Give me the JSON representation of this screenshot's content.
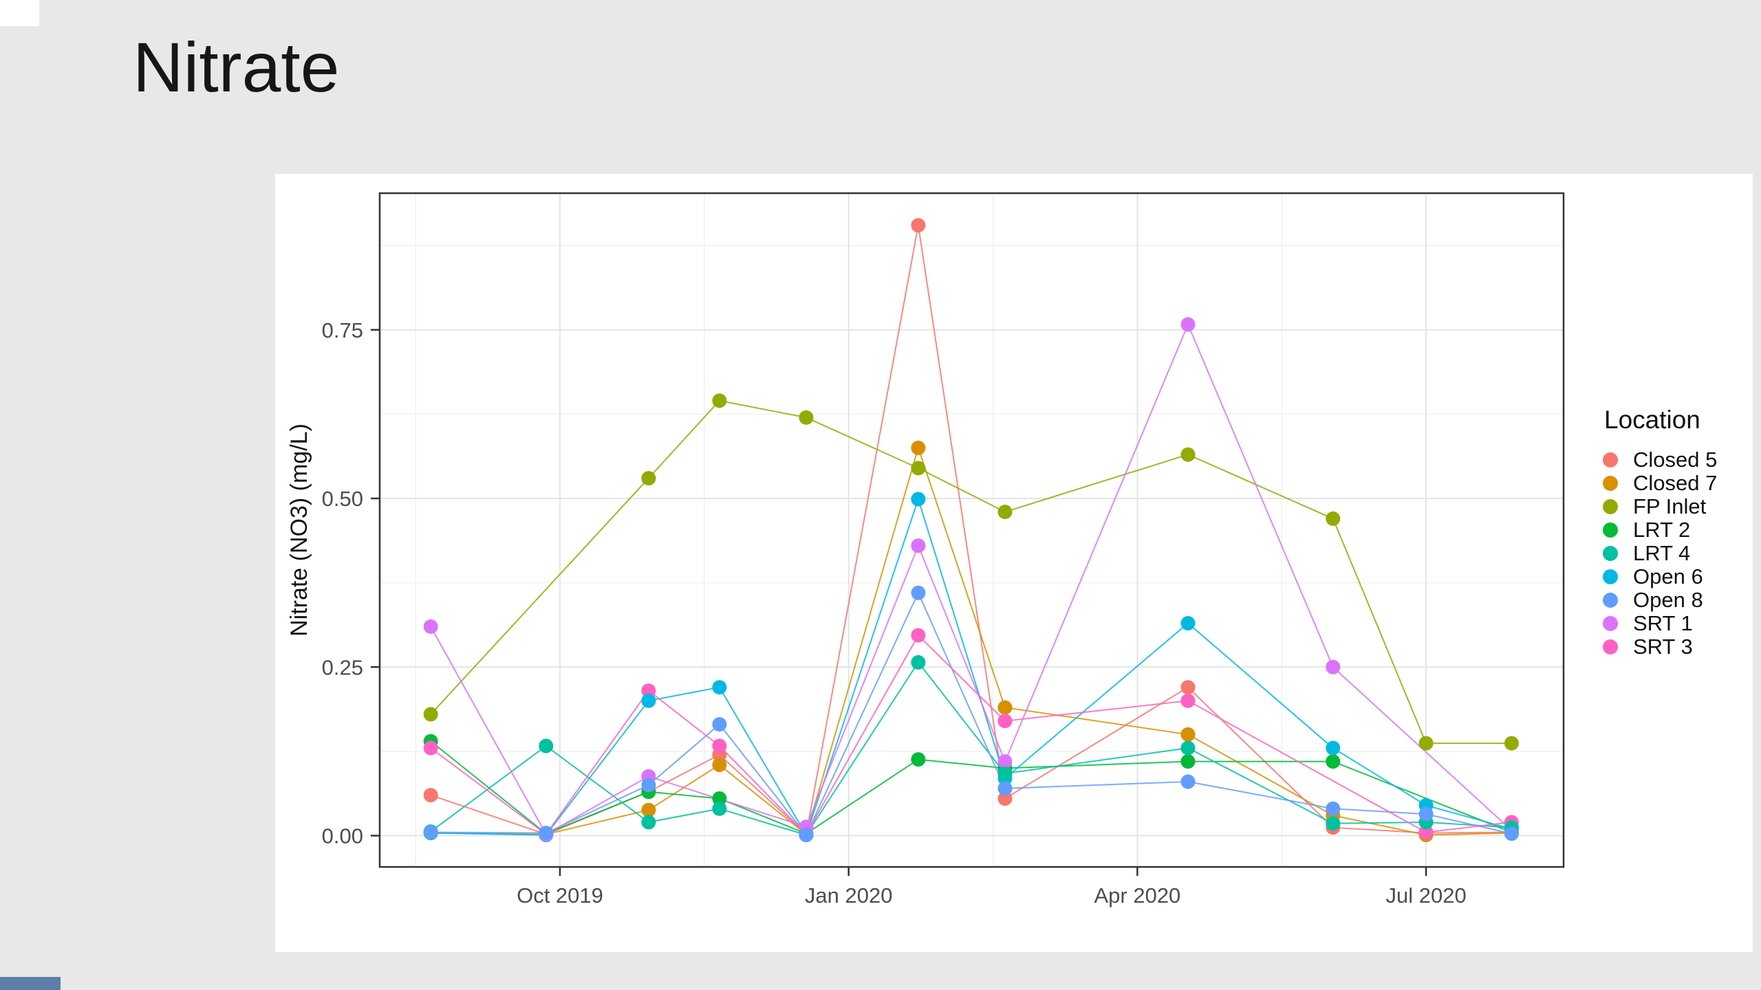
{
  "slide": {
    "title": "Nitrate",
    "background_color": "#E8E8E8",
    "card_color": "#FFFFFF",
    "top_left_box_color": "#FFFFFF",
    "bottom_left_bar_color": "#5B7FA6"
  },
  "chart_data": {
    "type": "line",
    "title": "Nitrate",
    "xlabel": "",
    "ylabel": "Nitrate (NO3) (mg/L)",
    "grid": true,
    "legend": {
      "title": "Location",
      "position": "right"
    },
    "x_tick_labels": [
      "Oct 2019",
      "Jan 2020",
      "Apr 2020",
      "Jul 2020"
    ],
    "x_tick_months_from_oct2019": [
      0,
      3,
      6,
      9
    ],
    "y_tick_labels": [
      "0.00",
      "0.25",
      "0.50",
      "0.75"
    ],
    "y_tick_values": [
      0,
      0.25,
      0.5,
      0.75
    ],
    "ylim": [
      -0.047,
      0.953
    ],
    "dates": [
      "2019-08-21",
      "2019-09-27",
      "2019-10-29",
      "2019-11-21",
      "2019-12-18",
      "2020-01-23",
      "2020-02-20",
      "2020-04-17",
      "2020-06-02",
      "2020-07-01",
      "2020-07-28"
    ],
    "series": [
      {
        "name": "Closed 5",
        "color": "#F8766D",
        "values": [
          0.06,
          0.002,
          0.065,
          0.12,
          0.002,
          0.905,
          0.055,
          0.22,
          0.012,
          0.004,
          0.005
        ]
      },
      {
        "name": "Closed 7",
        "color": "#D89000",
        "values": [
          0.004,
          0.002,
          0.038,
          0.105,
          0.002,
          0.575,
          0.19,
          0.15,
          0.03,
          0.001,
          0.004
        ]
      },
      {
        "name": "FP Inlet",
        "color": "#93AA00",
        "values": [
          0.18,
          null,
          0.53,
          0.645,
          0.62,
          0.545,
          0.48,
          0.565,
          0.47,
          0.137,
          0.137
        ]
      },
      {
        "name": "LRT 2",
        "color": "#00BA38",
        "values": [
          0.14,
          0.003,
          0.065,
          0.055,
          0.003,
          0.113,
          0.1,
          0.11,
          0.11,
          null,
          0.005
        ]
      },
      {
        "name": "LRT 4",
        "color": "#00C19F",
        "values": [
          0.006,
          0.133,
          0.02,
          0.04,
          0.001,
          0.257,
          0.092,
          0.13,
          0.018,
          0.02,
          0.012
        ]
      },
      {
        "name": "Open 6",
        "color": "#00B9E3",
        "values": [
          0.004,
          0.001,
          0.2,
          0.22,
          0.001,
          0.499,
          0.085,
          0.315,
          0.13,
          0.045,
          0.01
        ]
      },
      {
        "name": "Open 8",
        "color": "#619CFF",
        "values": [
          0.005,
          0.004,
          0.075,
          0.165,
          0.001,
          0.36,
          0.07,
          0.08,
          0.04,
          0.032,
          0.003
        ]
      },
      {
        "name": "SRT 1",
        "color": "#DB72FB",
        "values": [
          0.31,
          0.002,
          0.088,
          null,
          0.013,
          0.43,
          0.11,
          0.758,
          0.25,
          null,
          0.008
        ]
      },
      {
        "name": "SRT 3",
        "color": "#FF61C3",
        "values": [
          0.13,
          0.002,
          0.215,
          0.133,
          0.002,
          0.297,
          0.17,
          0.2,
          null,
          0.005,
          0.02
        ]
      }
    ]
  }
}
